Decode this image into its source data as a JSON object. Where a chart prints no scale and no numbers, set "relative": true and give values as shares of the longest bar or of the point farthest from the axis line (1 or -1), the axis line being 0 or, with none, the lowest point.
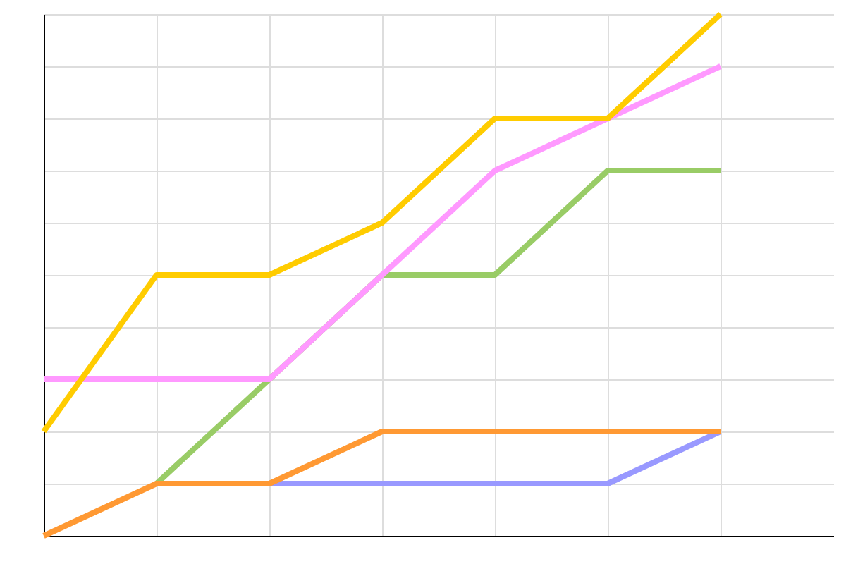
{
  "chart_data": {
    "type": "line",
    "relative": true,
    "grid": true,
    "marker": "none",
    "line_style": "solid",
    "categories": [
      null,
      null,
      null,
      null,
      null,
      null,
      null
    ],
    "series": [
      {
        "color": "#9999ff",
        "values": [
          null,
          null,
          0.1,
          0.1,
          0.1,
          0.1,
          0.2
        ]
      },
      {
        "color": "#99cc66",
        "values": [
          null,
          0.1,
          0.3,
          0.5,
          0.5,
          0.7,
          0.7
        ]
      },
      {
        "color": "#ff99ff",
        "values": [
          0.3,
          0.3,
          0.3,
          0.5,
          0.7,
          0.8,
          0.9
        ]
      },
      {
        "color": "#ff9933",
        "values": [
          0.0,
          0.1,
          0.1,
          0.2,
          0.2,
          0.2,
          0.2
        ]
      },
      {
        "color": "#ffcc00",
        "values": [
          0.2,
          0.5,
          0.5,
          0.6,
          0.8,
          0.8,
          1.0
        ]
      }
    ]
  }
}
